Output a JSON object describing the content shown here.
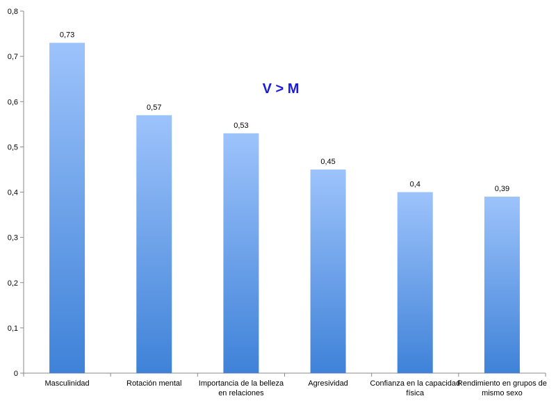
{
  "chart_data": {
    "type": "bar",
    "title": "",
    "xlabel": "",
    "ylabel": "",
    "categories": [
      [
        "Masculinidad"
      ],
      [
        "Rotación mental"
      ],
      [
        "Importancia de la belleza",
        "en relaciones"
      ],
      [
        "Agresividad"
      ],
      [
        "Confianza en la capacidad",
        "física"
      ],
      [
        "Rendimiento en grupos de",
        "mismo sexo"
      ]
    ],
    "values": [
      0.73,
      0.57,
      0.53,
      0.45,
      0.4,
      0.39
    ],
    "value_labels": [
      "0,73",
      "0,57",
      "0,53",
      "0,45",
      "0,4",
      "0,39"
    ],
    "ylim": [
      0,
      0.8
    ],
    "yticks": [
      0,
      0.1,
      0.2,
      0.3,
      0.4,
      0.5,
      0.6,
      0.7,
      0.8
    ],
    "ytick_labels": [
      "0",
      "0,1",
      "0,2",
      "0,3",
      "0,4",
      "0,5",
      "0,6",
      "0,7",
      "0,8"
    ],
    "grid": false,
    "legend": "none",
    "annotation": {
      "text": "V > M",
      "color": "#1a1adc"
    },
    "colors": {
      "bar_top": "#9dc3fb",
      "bar_bottom": "#3f82d8",
      "axis": "#888888"
    }
  }
}
